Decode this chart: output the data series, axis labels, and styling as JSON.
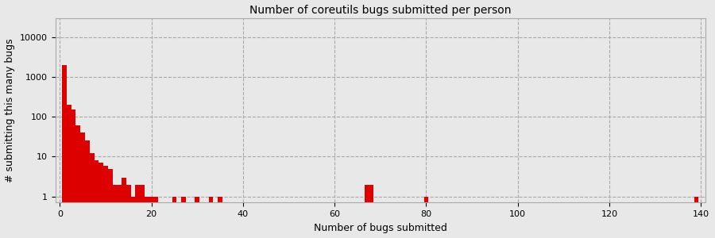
{
  "title": "Number of coreutils bugs submitted per person",
  "xlabel": "Number of bugs submitted",
  "ylabel": "# submitting this many bugs",
  "bar_color": "#dd0000",
  "bg_color": "#e8e8e8",
  "xlim": [
    -1,
    141
  ],
  "ylim_log": [
    0.7,
    30000
  ],
  "xticks": [
    0,
    20,
    40,
    60,
    80,
    100,
    120,
    140
  ],
  "yticks": [
    1,
    10,
    100,
    1000,
    10000
  ],
  "bar_data": {
    "x": [
      1,
      2,
      3,
      4,
      5,
      6,
      7,
      8,
      9,
      10,
      11,
      12,
      13,
      14,
      15,
      16,
      17,
      18,
      19,
      20,
      21,
      25,
      27,
      30,
      33,
      35,
      67,
      68,
      80,
      139
    ],
    "y": [
      2000,
      200,
      150,
      60,
      40,
      25,
      12,
      8,
      7,
      6,
      5,
      2,
      2,
      3,
      2,
      1,
      2,
      2,
      1,
      1,
      1,
      1,
      1,
      1,
      1,
      1,
      2,
      2,
      1,
      1
    ]
  },
  "grid_color": "#aaaaaa",
  "grid_linestyle": "--",
  "title_fontsize": 10,
  "label_fontsize": 9,
  "tick_fontsize": 8
}
